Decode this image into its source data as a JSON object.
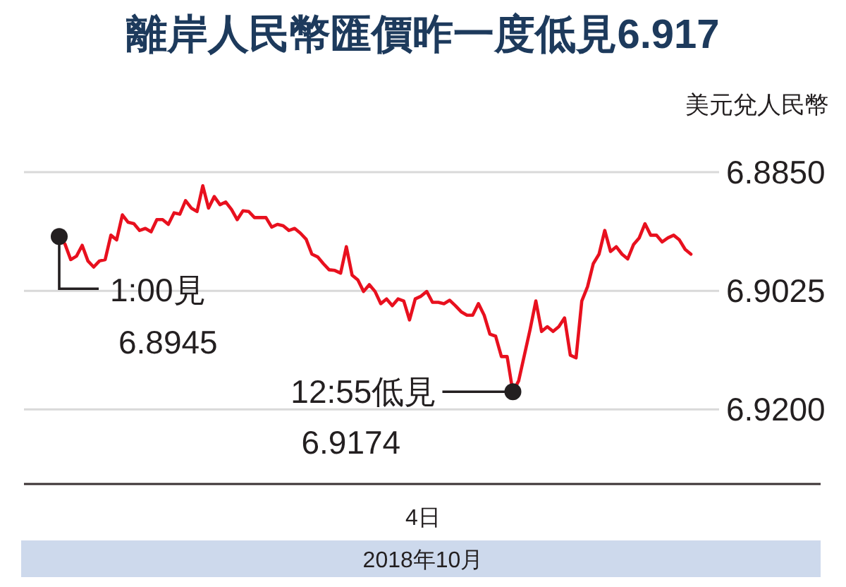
{
  "chart_data": {
    "type": "line",
    "title": "離岸人民幣匯價昨一度低見6.917",
    "ylabel": "美元兌人民幣",
    "xlabel": "4日",
    "annotations": [
      "1:00見\n6.8945",
      "12:55低見\n6.9174",
      "2018年10月"
    ],
    "categories": [
      null,
      null,
      null,
      null,
      null,
      null,
      null,
      null,
      null,
      null,
      null,
      null,
      null,
      null,
      null,
      null,
      null,
      null,
      null,
      null,
      null,
      null,
      null,
      null,
      null,
      null,
      null,
      null,
      null,
      null,
      null,
      null,
      null,
      null,
      null,
      null,
      null,
      null,
      null,
      null,
      null,
      null,
      null,
      null,
      null,
      null,
      null,
      null,
      null,
      null,
      null,
      null,
      null,
      null,
      null,
      null,
      null,
      null,
      null,
      null,
      null,
      null,
      null,
      null,
      null,
      null,
      null,
      null,
      null,
      null,
      null,
      null,
      null,
      null,
      null,
      null,
      null,
      null,
      null,
      null,
      null,
      null,
      null,
      null,
      null,
      null,
      null,
      null,
      null,
      null,
      null,
      null,
      null,
      null,
      null,
      null,
      null,
      null,
      null,
      null,
      null,
      null,
      null,
      null,
      null,
      null,
      null,
      null,
      null,
      null,
      null
    ],
    "ylim": [
      6.931,
      6.885
    ],
    "yticks": [
      {
        "value": 6.885,
        "label": "6.8850"
      },
      {
        "value": 6.9025,
        "label": "6.9025"
      },
      {
        "value": 6.92,
        "label": "6.9200"
      }
    ],
    "grid": "y",
    "tick_labels": "y",
    "marker": "none",
    "line_style": "solid",
    "series": [
      {
        "color": "#e8101e",
        "values": [
          6.8945,
          6.8956,
          6.8979,
          6.8974,
          6.8958,
          6.8981,
          6.899,
          6.8981,
          6.8979,
          6.8943,
          6.895,
          6.8913,
          6.8924,
          6.8926,
          6.8936,
          6.8933,
          6.8938,
          6.892,
          6.892,
          6.8927,
          6.891,
          6.8912,
          6.8892,
          6.8903,
          6.8908,
          6.887,
          6.8903,
          6.8886,
          6.8898,
          6.8894,
          6.8905,
          6.892,
          6.8907,
          6.8908,
          6.8917,
          6.8917,
          6.8917,
          6.8931,
          6.8927,
          6.8929,
          6.8936,
          6.8933,
          6.894,
          6.8949,
          6.8971,
          6.8975,
          6.8985,
          6.8994,
          6.8995,
          6.8999,
          6.896,
          6.9002,
          6.9009,
          6.9026,
          6.9016,
          6.9026,
          6.9044,
          6.9037,
          6.9047,
          6.9037,
          6.904,
          6.9068,
          6.9037,
          6.9033,
          6.9026,
          6.9042,
          6.9042,
          6.9044,
          6.9039,
          6.9047,
          6.9056,
          6.9061,
          6.9061,
          6.9044,
          6.9061,
          6.9089,
          6.9092,
          6.9122,
          6.9122,
          6.9174,
          6.9158,
          6.912,
          6.9082,
          6.904,
          6.9085,
          6.9078,
          6.9085,
          6.9078,
          6.9065,
          6.912,
          6.9124,
          6.904,
          6.9019,
          6.8985,
          6.8971,
          6.8936,
          6.8967,
          6.896,
          6.8971,
          6.8978,
          6.8957,
          6.8947,
          6.8926,
          6.8943,
          6.8943,
          6.8953,
          6.8947,
          6.8943,
          6.895,
          6.8964,
          6.8971
        ]
      }
    ]
  }
}
